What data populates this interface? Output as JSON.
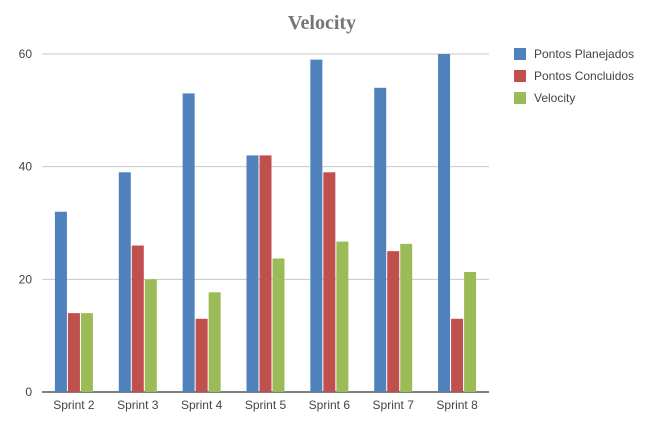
{
  "chart_data": {
    "type": "bar",
    "title": "Velocity",
    "xlabel": "",
    "ylabel": "",
    "categories": [
      "Sprint 2",
      "Sprint 3",
      "Sprint 4",
      "Sprint 5",
      "Sprint 6",
      "Sprint 7",
      "Sprint 8"
    ],
    "series": [
      {
        "name": "Pontos Planejados",
        "color": "#4f81bd",
        "values": [
          32,
          39,
          53,
          42,
          59,
          54,
          60
        ]
      },
      {
        "name": "Pontos Concluidos",
        "color": "#c0504d",
        "values": [
          14,
          26,
          13,
          42,
          39,
          25,
          13
        ]
      },
      {
        "name": "Velocity",
        "color": "#9bbb59",
        "values": [
          14,
          20,
          17.7,
          23.7,
          26.7,
          26.3,
          21.3
        ]
      }
    ],
    "ylim": [
      0,
      60
    ],
    "yticks": [
      0,
      20,
      40,
      60
    ],
    "grid": true,
    "legend": "right"
  }
}
